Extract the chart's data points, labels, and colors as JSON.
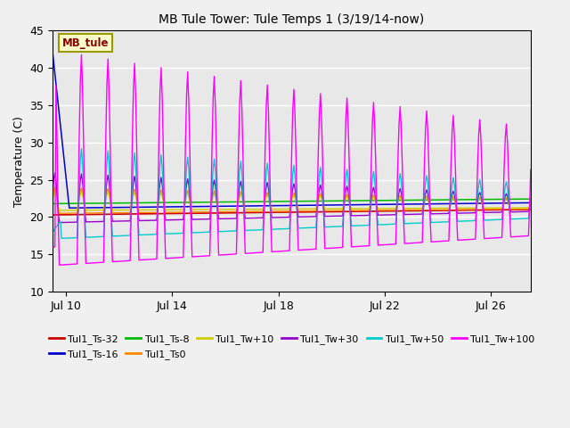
{
  "title": "MB Tule Tower: Tule Temps 1 (3/19/14-now)",
  "ylabel": "Temperature (C)",
  "xlim_days": [
    9.5,
    27.5
  ],
  "ylim": [
    10,
    45
  ],
  "yticks": [
    10,
    15,
    20,
    25,
    30,
    35,
    40,
    45
  ],
  "xtick_labels": [
    "Jul 10",
    "Jul 14",
    "Jul 18",
    "Jul 22",
    "Jul 26"
  ],
  "xtick_positions": [
    10,
    14,
    18,
    22,
    26
  ],
  "plot_bg_color": "#e8e8e8",
  "fig_bg_color": "#f0f0f0",
  "grid_color": "#ffffff",
  "annotation_box": {
    "text": "MB_tule",
    "facecolor": "#ffffcc",
    "edgecolor": "#999900",
    "textcolor": "#880000"
  },
  "legend": [
    {
      "label": "Tul1_Ts-32",
      "color": "#cc0000"
    },
    {
      "label": "Tul1_Ts-16",
      "color": "#0000cc"
    },
    {
      "label": "Tul1_Ts-8",
      "color": "#00bb00"
    },
    {
      "label": "Tul1_Ts0",
      "color": "#ff8800"
    },
    {
      "label": "Tul1_Tw+10",
      "color": "#cccc00"
    },
    {
      "label": "Tul1_Tw+30",
      "color": "#9900cc"
    },
    {
      "label": "Tul1_Tw+50",
      "color": "#00cccc"
    },
    {
      "label": "Tul1_Tw+100",
      "color": "#ff00ff"
    }
  ]
}
